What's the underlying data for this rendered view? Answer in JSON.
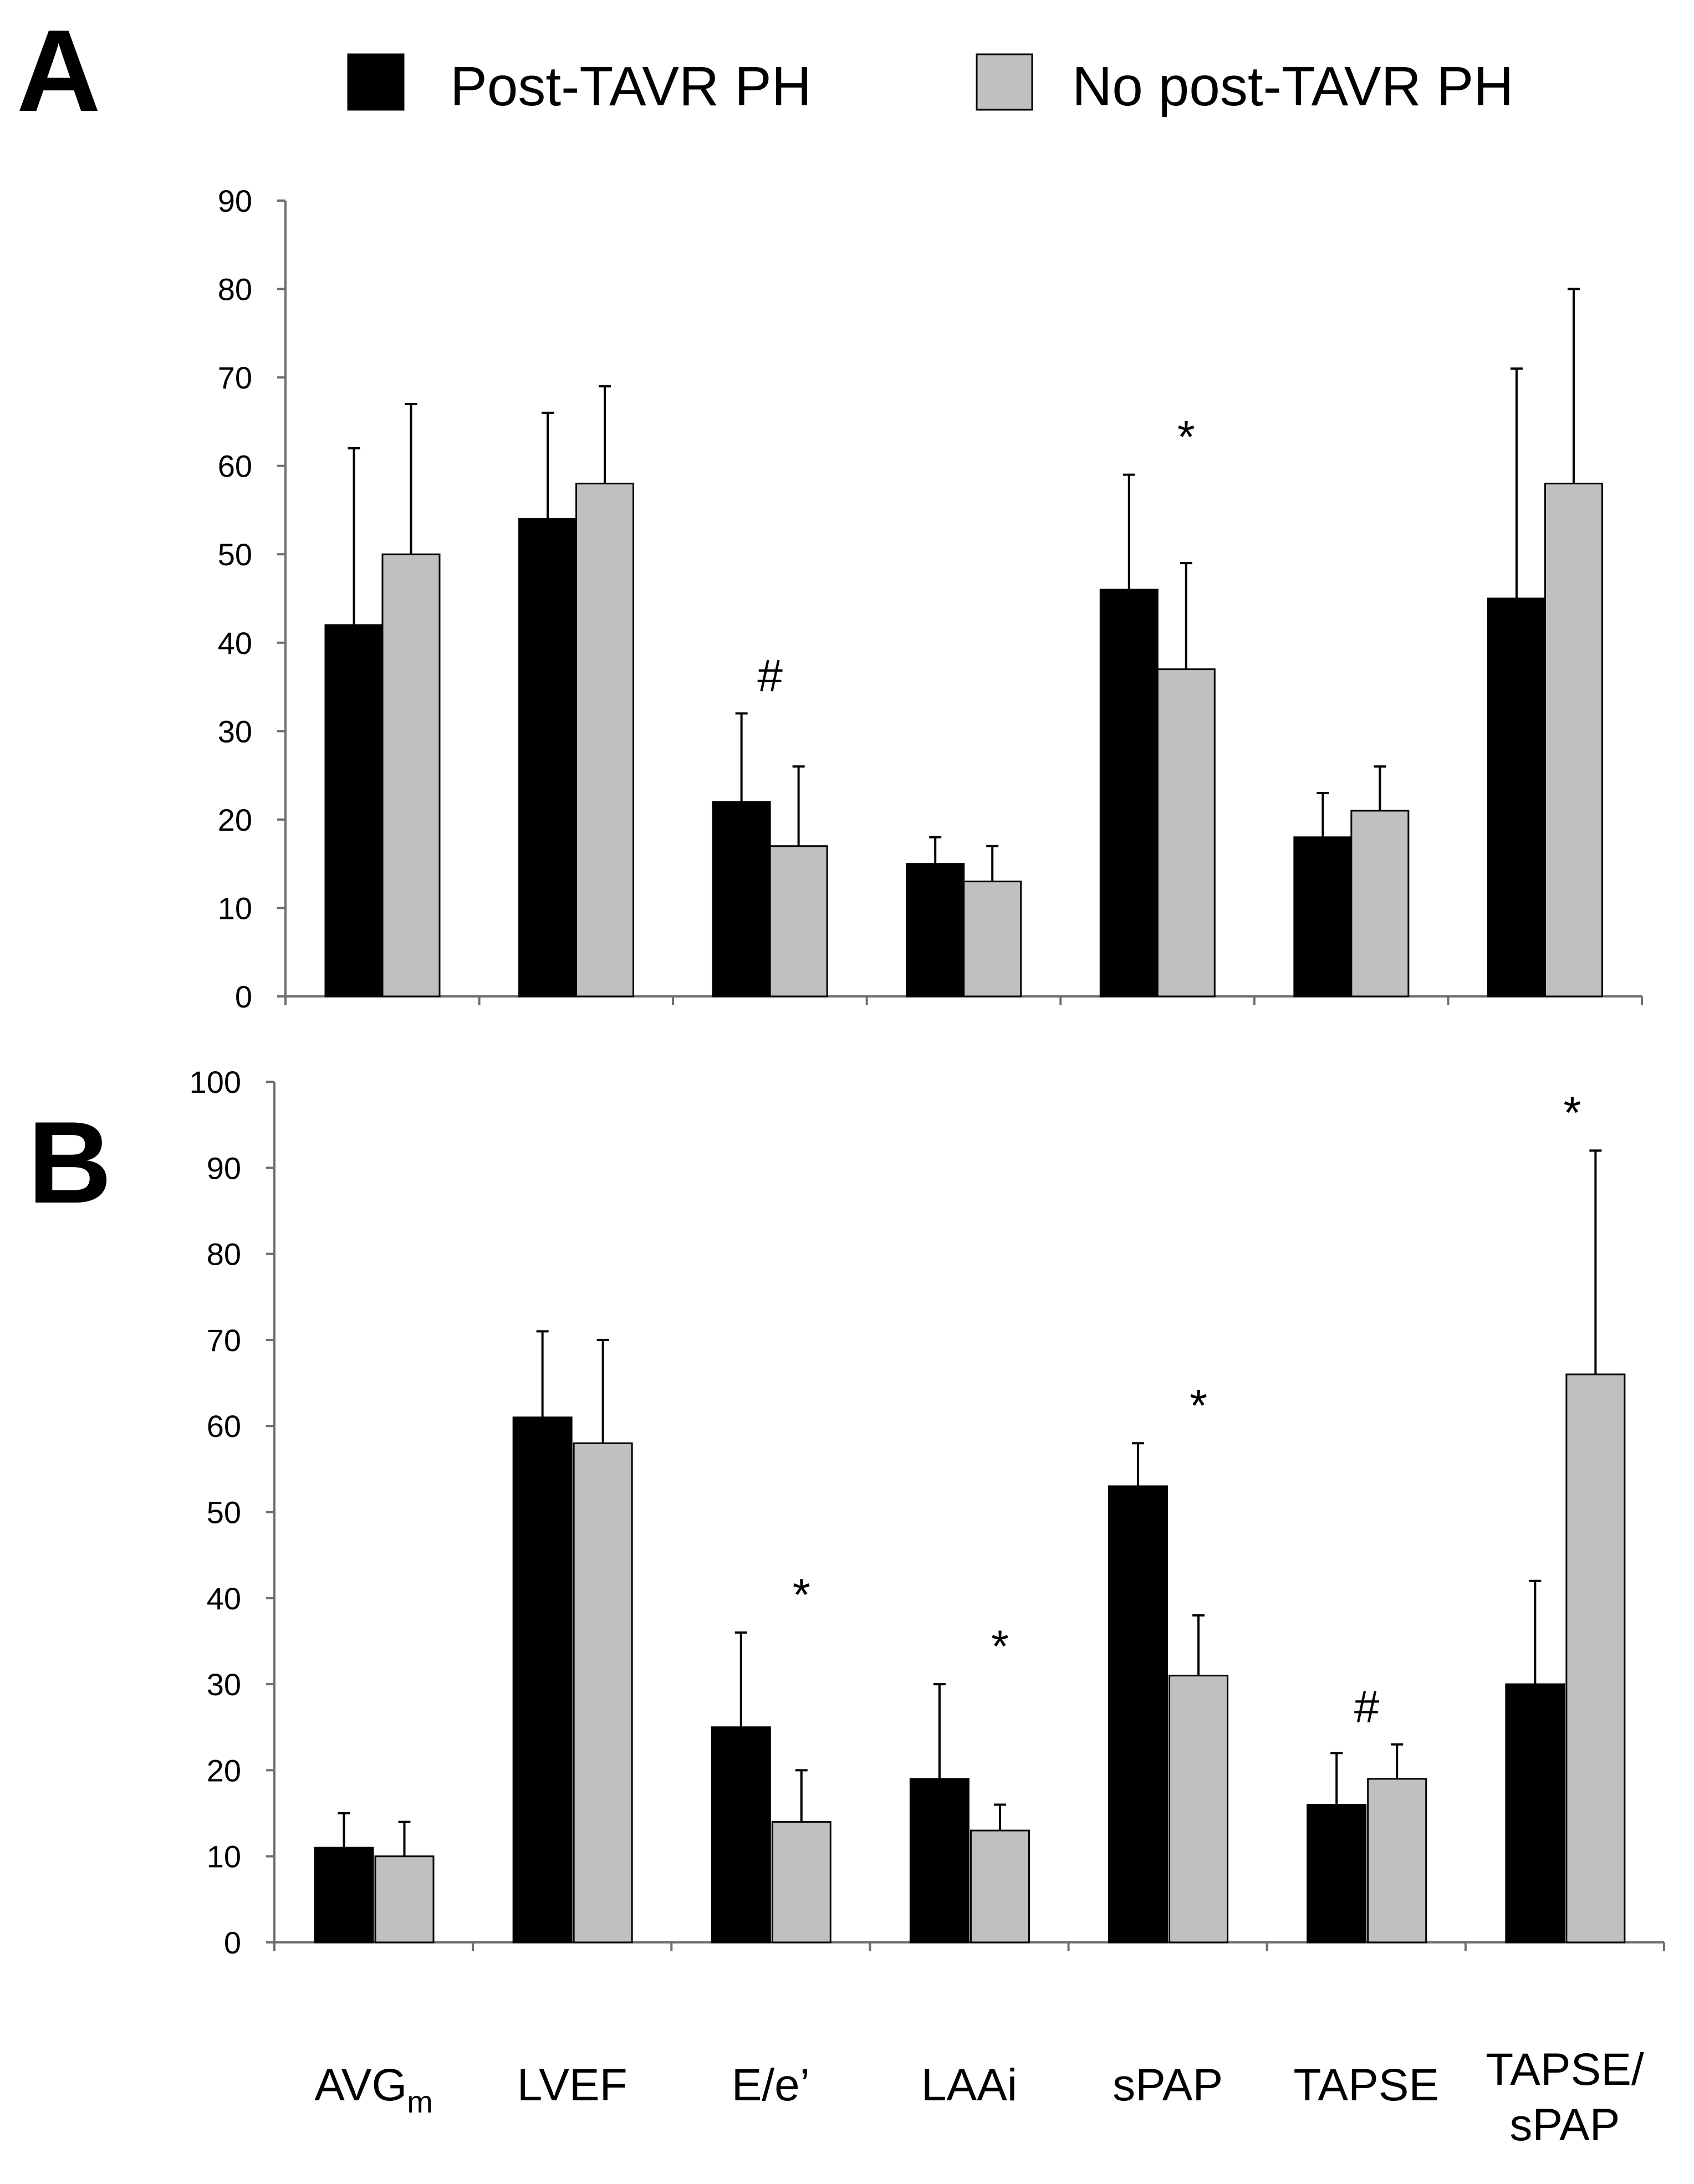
{
  "chart_data": [
    {
      "type": "bar",
      "panel": "A",
      "categories": [
        "AVGm",
        "LVEF",
        "E/e’",
        "LAAi",
        "sPAP",
        "TAPSE",
        "TAPSE/ sPAP"
      ],
      "series": [
        {
          "name": "Post-TAVR PH",
          "color": "#000000",
          "values": [
            42,
            54,
            22,
            15,
            46,
            18,
            45
          ],
          "errors": [
            20,
            12,
            10,
            3,
            13,
            5,
            26
          ]
        },
        {
          "name": "No post-TAVR PH",
          "color": "#c0c0c0",
          "values": [
            50,
            58,
            17,
            13,
            37,
            21,
            58
          ],
          "errors": [
            17,
            11,
            9,
            4,
            12,
            5,
            22
          ]
        }
      ],
      "ylim": [
        0,
        90
      ],
      "yticks": [
        0,
        10,
        20,
        30,
        40,
        50,
        60,
        70,
        80,
        90
      ],
      "annotations": [
        {
          "category": "E/e’",
          "text": "#"
        },
        {
          "category": "sPAP",
          "text": "*"
        }
      ]
    },
    {
      "type": "bar",
      "panel": "B",
      "categories": [
        "AVGm",
        "LVEF",
        "E/e’",
        "LAAi",
        "sPAP",
        "TAPSE",
        "TAPSE/ sPAP"
      ],
      "series": [
        {
          "name": "Post-TAVR PH",
          "color": "#000000",
          "values": [
            11,
            61,
            25,
            19,
            53,
            16,
            30
          ],
          "errors": [
            4,
            10,
            11,
            11,
            5,
            6,
            12
          ]
        },
        {
          "name": "No post-TAVR PH",
          "color": "#c0c0c0",
          "values": [
            10,
            58,
            14,
            13,
            31,
            19,
            66
          ],
          "errors": [
            4,
            12,
            6,
            3,
            7,
            4,
            26
          ]
        }
      ],
      "ylim": [
        0,
        100
      ],
      "yticks": [
        0,
        10,
        20,
        30,
        40,
        50,
        60,
        70,
        80,
        90,
        100
      ],
      "annotations": [
        {
          "category": "E/e’",
          "text": "*"
        },
        {
          "category": "LAAi",
          "text": "*"
        },
        {
          "category": "sPAP",
          "text": "*"
        },
        {
          "category": "TAPSE",
          "text": "#"
        },
        {
          "category": "TAPSE/ sPAP",
          "text": "*"
        }
      ]
    }
  ],
  "legend": {
    "items": [
      {
        "label": "Post-TAVR PH",
        "color": "#000000"
      },
      {
        "label": "No post-TAVR PH",
        "color": "#c0c0c0"
      }
    ]
  },
  "panel_labels": [
    "A",
    "B"
  ],
  "x_labels": [
    {
      "main": "AVG",
      "sub": "m"
    },
    {
      "main": "LVEF"
    },
    {
      "main": "E/e’"
    },
    {
      "main": "LAAi"
    },
    {
      "main": "sPAP"
    },
    {
      "main": "TAPSE"
    },
    {
      "lines": [
        "TAPSE/",
        "sPAP"
      ]
    }
  ]
}
